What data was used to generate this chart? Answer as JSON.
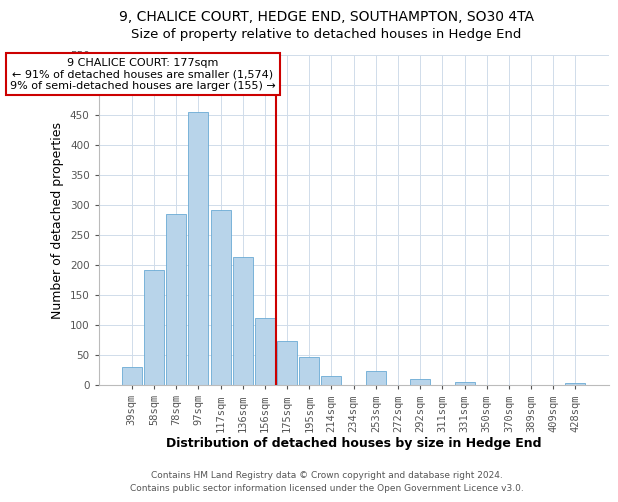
{
  "title": "9, CHALICE COURT, HEDGE END, SOUTHAMPTON, SO30 4TA",
  "subtitle": "Size of property relative to detached houses in Hedge End",
  "xlabel": "Distribution of detached houses by size in Hedge End",
  "ylabel": "Number of detached properties",
  "bar_labels": [
    "39sqm",
    "58sqm",
    "78sqm",
    "97sqm",
    "117sqm",
    "136sqm",
    "156sqm",
    "175sqm",
    "195sqm",
    "214sqm",
    "234sqm",
    "253sqm",
    "272sqm",
    "292sqm",
    "311sqm",
    "331sqm",
    "350sqm",
    "370sqm",
    "389sqm",
    "409sqm",
    "428sqm"
  ],
  "bar_values": [
    30,
    191,
    284,
    455,
    291,
    212,
    111,
    73,
    46,
    14,
    0,
    22,
    0,
    9,
    0,
    5,
    0,
    0,
    0,
    0,
    3
  ],
  "bar_color": "#b8d4ea",
  "bar_edge_color": "#6aaad4",
  "vline_index": 7,
  "vline_color": "#cc0000",
  "ylim": [
    0,
    550
  ],
  "yticks": [
    0,
    50,
    100,
    150,
    200,
    250,
    300,
    350,
    400,
    450,
    500,
    550
  ],
  "annotation_title": "9 CHALICE COURT: 177sqm",
  "annotation_line1": "← 91% of detached houses are smaller (1,574)",
  "annotation_line2": "9% of semi-detached houses are larger (155) →",
  "annotation_box_color": "#ffffff",
  "annotation_box_edge": "#cc0000",
  "footer1": "Contains HM Land Registry data © Crown copyright and database right 2024.",
  "footer2": "Contains public sector information licensed under the Open Government Licence v3.0.",
  "title_fontsize": 10,
  "subtitle_fontsize": 9.5,
  "axis_label_fontsize": 9,
  "tick_fontsize": 7.5,
  "annotation_fontsize": 8,
  "footer_fontsize": 6.5,
  "grid_color": "#d0dcea"
}
